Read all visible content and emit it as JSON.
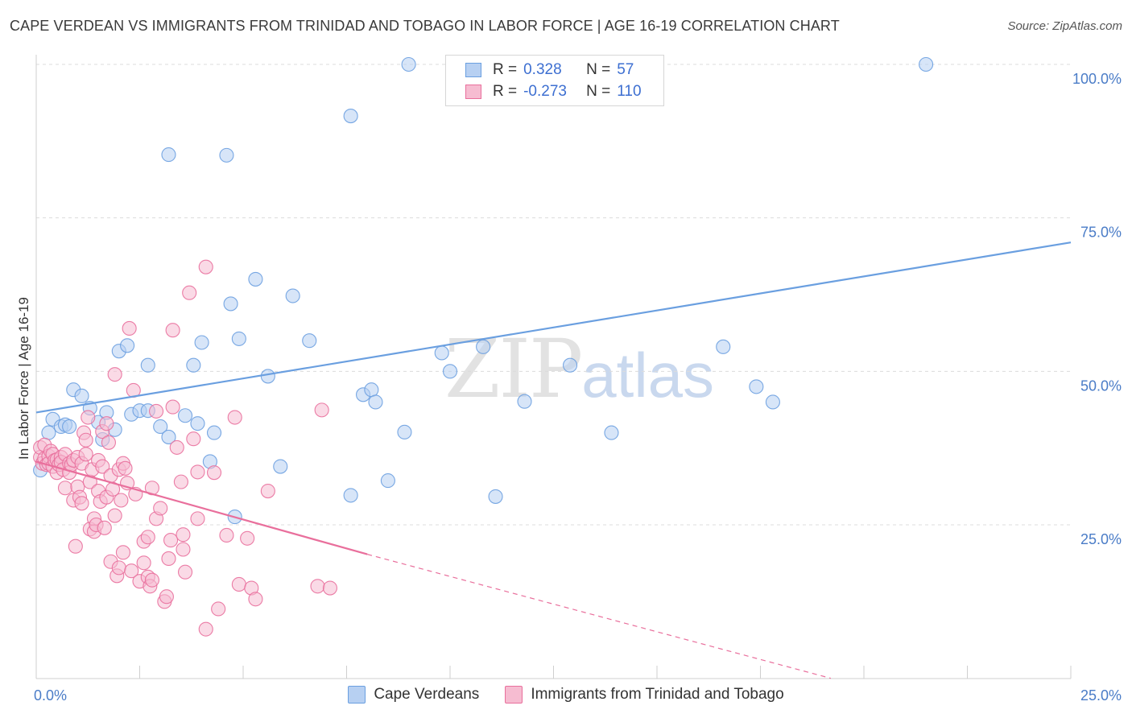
{
  "title": "CAPE VERDEAN VS IMMIGRANTS FROM TRINIDAD AND TOBAGO IN LABOR FORCE | AGE 16-19 CORRELATION CHART",
  "source": "Source: ZipAtlas.com",
  "watermark": {
    "zip": "ZIP",
    "atlas": "atlas"
  },
  "legend": {
    "r_label": "R =",
    "n_label": "N =",
    "rows": [
      {
        "r": "0.328",
        "n": "57"
      },
      {
        "r": "-0.273",
        "n": "110"
      }
    ]
  },
  "chart_data": {
    "type": "scatter",
    "title": "CAPE VERDEAN VS IMMIGRANTS FROM TRINIDAD AND TOBAGO IN LABOR FORCE | AGE 16-19 CORRELATION CHART",
    "xlabel": "",
    "ylabel": "In Labor Force | Age 16-19",
    "xlim": [
      0,
      25
    ],
    "ylim": [
      0,
      102
    ],
    "x_tick_labels": [
      {
        "value": 0,
        "label": "0.0%"
      },
      {
        "value": 25,
        "label": "25.0%"
      }
    ],
    "y_ticks": [
      {
        "value": 25,
        "label": "25.0%"
      },
      {
        "value": 50,
        "label": "50.0%"
      },
      {
        "value": 75,
        "label": "75.0%"
      },
      {
        "value": 100,
        "label": "100.0%"
      }
    ],
    "grid": true,
    "legend_position": "top-center",
    "series": [
      {
        "name": "Cape Verdeans",
        "color": "#6a9fe0",
        "fill": "#b7d0f2",
        "r": 0.328,
        "n": 57,
        "trend": {
          "x0": 0,
          "y0": 43.3,
          "x1": 25,
          "y1": 71.0,
          "dashed_to": null
        },
        "points": [
          [
            0.1,
            33.9
          ],
          [
            0.3,
            40.0
          ],
          [
            0.4,
            42.2
          ],
          [
            0.6,
            41.0
          ],
          [
            0.7,
            41.3
          ],
          [
            0.8,
            41.0
          ],
          [
            0.9,
            47.0
          ],
          [
            1.1,
            46.0
          ],
          [
            1.3,
            44.0
          ],
          [
            1.5,
            41.7
          ],
          [
            1.6,
            38.9
          ],
          [
            1.7,
            43.3
          ],
          [
            1.9,
            40.5
          ],
          [
            2.0,
            53.3
          ],
          [
            2.2,
            54.2
          ],
          [
            2.3,
            43.0
          ],
          [
            2.5,
            43.6
          ],
          [
            2.7,
            51.0
          ],
          [
            2.7,
            43.6
          ],
          [
            3.0,
            41.0
          ],
          [
            3.2,
            39.3
          ],
          [
            3.2,
            85.3
          ],
          [
            3.6,
            42.8
          ],
          [
            3.8,
            51.0
          ],
          [
            3.9,
            41.5
          ],
          [
            4.0,
            54.7
          ],
          [
            4.2,
            35.3
          ],
          [
            4.3,
            40.0
          ],
          [
            4.6,
            85.2
          ],
          [
            4.7,
            61.0
          ],
          [
            4.8,
            26.3
          ],
          [
            4.9,
            55.3
          ],
          [
            5.3,
            65.0
          ],
          [
            5.6,
            49.2
          ],
          [
            5.9,
            34.5
          ],
          [
            6.2,
            62.3
          ],
          [
            6.6,
            55.0
          ],
          [
            7.6,
            91.6
          ],
          [
            7.6,
            29.8
          ],
          [
            7.9,
            46.2
          ],
          [
            8.1,
            47.0
          ],
          [
            8.2,
            45.0
          ],
          [
            8.5,
            32.2
          ],
          [
            8.9,
            40.1
          ],
          [
            9.0,
            100.0
          ],
          [
            9.8,
            53.0
          ],
          [
            10.0,
            50.0
          ],
          [
            10.8,
            54.0
          ],
          [
            11.1,
            29.6
          ],
          [
            11.8,
            45.1
          ],
          [
            12.9,
            51.0
          ],
          [
            13.5,
            100.0
          ],
          [
            13.9,
            40.0
          ],
          [
            16.6,
            54.0
          ],
          [
            17.4,
            47.5
          ],
          [
            17.8,
            45.0
          ],
          [
            21.5,
            100.0
          ]
        ]
      },
      {
        "name": "Immigrants from Trinidad and Tobago",
        "color": "#e96f9c",
        "fill": "#f6bcd1",
        "r": -0.273,
        "n": 110,
        "trend": {
          "x0": 0,
          "y0": 35.3,
          "x1": 8.0,
          "y1": 20.2,
          "dashed_to": {
            "x": 19.2,
            "y": 0
          }
        },
        "points": [
          [
            0.1,
            36.0
          ],
          [
            0.1,
            37.6
          ],
          [
            0.15,
            35.0
          ],
          [
            0.2,
            38.0
          ],
          [
            0.2,
            35.8
          ],
          [
            0.25,
            34.8
          ],
          [
            0.3,
            36.2
          ],
          [
            0.3,
            35.0
          ],
          [
            0.35,
            37.0
          ],
          [
            0.4,
            34.5
          ],
          [
            0.4,
            36.5
          ],
          [
            0.45,
            35.5
          ],
          [
            0.5,
            33.5
          ],
          [
            0.5,
            35.6
          ],
          [
            0.55,
            34.8
          ],
          [
            0.6,
            36.0
          ],
          [
            0.6,
            35.2
          ],
          [
            0.65,
            34.0
          ],
          [
            0.7,
            31.0
          ],
          [
            0.7,
            36.5
          ],
          [
            0.8,
            35.0
          ],
          [
            0.8,
            33.5
          ],
          [
            0.85,
            34.8
          ],
          [
            0.9,
            29.0
          ],
          [
            0.9,
            35.5
          ],
          [
            0.95,
            21.5
          ],
          [
            1.0,
            31.2
          ],
          [
            1.0,
            36.0
          ],
          [
            1.05,
            29.5
          ],
          [
            1.1,
            35.0
          ],
          [
            1.1,
            28.5
          ],
          [
            1.15,
            40.0
          ],
          [
            1.2,
            38.8
          ],
          [
            1.2,
            36.5
          ],
          [
            1.25,
            42.5
          ],
          [
            1.3,
            32.0
          ],
          [
            1.3,
            24.3
          ],
          [
            1.35,
            34.0
          ],
          [
            1.4,
            26.0
          ],
          [
            1.4,
            23.9
          ],
          [
            1.45,
            25.0
          ],
          [
            1.5,
            35.5
          ],
          [
            1.5,
            30.5
          ],
          [
            1.55,
            28.8
          ],
          [
            1.6,
            40.2
          ],
          [
            1.6,
            34.5
          ],
          [
            1.65,
            24.5
          ],
          [
            1.7,
            41.5
          ],
          [
            1.7,
            29.5
          ],
          [
            1.75,
            38.4
          ],
          [
            1.8,
            33.0
          ],
          [
            1.8,
            19.0
          ],
          [
            1.85,
            30.8
          ],
          [
            1.9,
            26.5
          ],
          [
            1.9,
            49.5
          ],
          [
            1.95,
            16.7
          ],
          [
            2.0,
            34.0
          ],
          [
            2.0,
            18.0
          ],
          [
            2.05,
            29.0
          ],
          [
            2.1,
            35.0
          ],
          [
            2.1,
            20.5
          ],
          [
            2.15,
            34.2
          ],
          [
            2.2,
            31.8
          ],
          [
            2.25,
            57.0
          ],
          [
            2.3,
            17.5
          ],
          [
            2.35,
            46.9
          ],
          [
            2.4,
            30.0
          ],
          [
            2.5,
            15.8
          ],
          [
            2.6,
            22.3
          ],
          [
            2.6,
            18.8
          ],
          [
            2.7,
            23.0
          ],
          [
            2.7,
            16.5
          ],
          [
            2.75,
            15.0
          ],
          [
            2.8,
            31.0
          ],
          [
            2.8,
            16.0
          ],
          [
            2.9,
            26.0
          ],
          [
            2.9,
            43.5
          ],
          [
            3.0,
            27.7
          ],
          [
            3.1,
            12.5
          ],
          [
            3.15,
            13.3
          ],
          [
            3.2,
            19.5
          ],
          [
            3.25,
            22.5
          ],
          [
            3.3,
            56.7
          ],
          [
            3.3,
            44.2
          ],
          [
            3.4,
            37.6
          ],
          [
            3.5,
            32.0
          ],
          [
            3.55,
            23.4
          ],
          [
            3.55,
            21.0
          ],
          [
            3.6,
            17.3
          ],
          [
            3.7,
            62.8
          ],
          [
            3.8,
            39.0
          ],
          [
            3.9,
            33.6
          ],
          [
            3.9,
            26.0
          ],
          [
            4.1,
            67.0
          ],
          [
            4.1,
            8.0
          ],
          [
            4.3,
            33.5
          ],
          [
            4.4,
            11.3
          ],
          [
            4.6,
            23.3
          ],
          [
            4.8,
            42.5
          ],
          [
            4.9,
            15.3
          ],
          [
            5.1,
            22.8
          ],
          [
            5.2,
            14.7
          ],
          [
            5.3,
            12.9
          ],
          [
            5.6,
            30.5
          ],
          [
            6.8,
            15.0
          ],
          [
            6.9,
            43.7
          ],
          [
            7.1,
            14.7
          ]
        ]
      }
    ]
  }
}
